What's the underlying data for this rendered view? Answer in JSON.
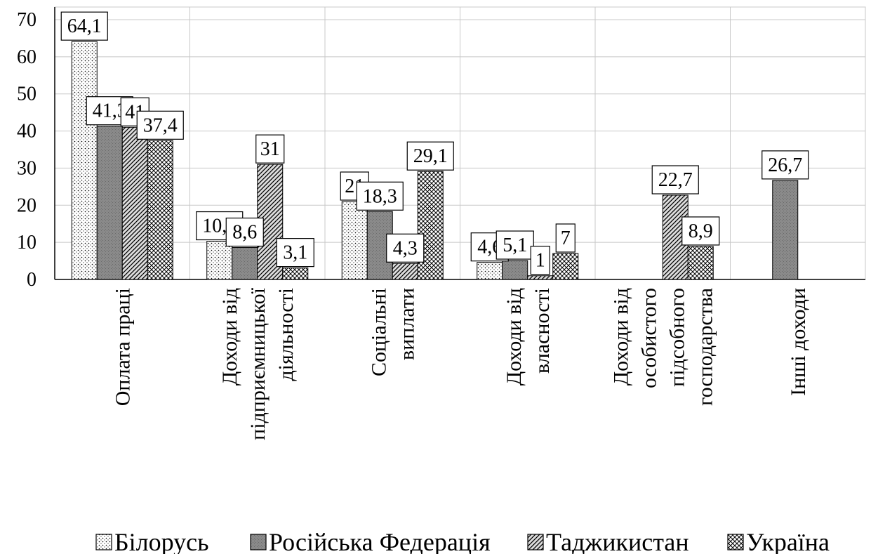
{
  "chart_data": {
    "type": "bar",
    "categories": [
      [
        "Оплата праці"
      ],
      [
        "Доходи від",
        "підприємницької",
        "діяльності"
      ],
      [
        "Соціальні",
        "виплати"
      ],
      [
        "Доходи від",
        "власності"
      ],
      [
        "Доходи від",
        "особистого",
        "підсобного",
        "господарства"
      ],
      [
        "Інші доходи"
      ]
    ],
    "series": [
      {
        "name": "Білорусь",
        "values": [
          64.1,
          10.3,
          21,
          4.6,
          null,
          null
        ],
        "labels": [
          "64,1",
          "10,3",
          "21",
          "4,6",
          "",
          ""
        ],
        "pattern": "dots"
      },
      {
        "name": "Російська Федерація",
        "values": [
          41.3,
          8.6,
          18.3,
          5.1,
          null,
          26.7
        ],
        "labels": [
          "41,3",
          "8,6",
          "18,3",
          "5,1",
          "",
          "26,7"
        ],
        "pattern": "gray"
      },
      {
        "name": "Таджикистан",
        "values": [
          41,
          31,
          4.3,
          1,
          22.7,
          null
        ],
        "labels": [
          "41",
          "31",
          "4,3",
          "1",
          "22,7",
          ""
        ],
        "pattern": "diagonal"
      },
      {
        "name": "Україна",
        "values": [
          37.4,
          3.1,
          29.1,
          7,
          8.9,
          null
        ],
        "labels": [
          "37,4",
          "3,1",
          "29,1",
          "7",
          "8,9",
          ""
        ],
        "pattern": "crosshatch"
      }
    ],
    "yticks": [
      "0",
      "10",
      "20",
      "30",
      "40",
      "50",
      "60",
      "70"
    ],
    "ylim": [
      0,
      70
    ],
    "grid": true,
    "legend": "bottom"
  }
}
